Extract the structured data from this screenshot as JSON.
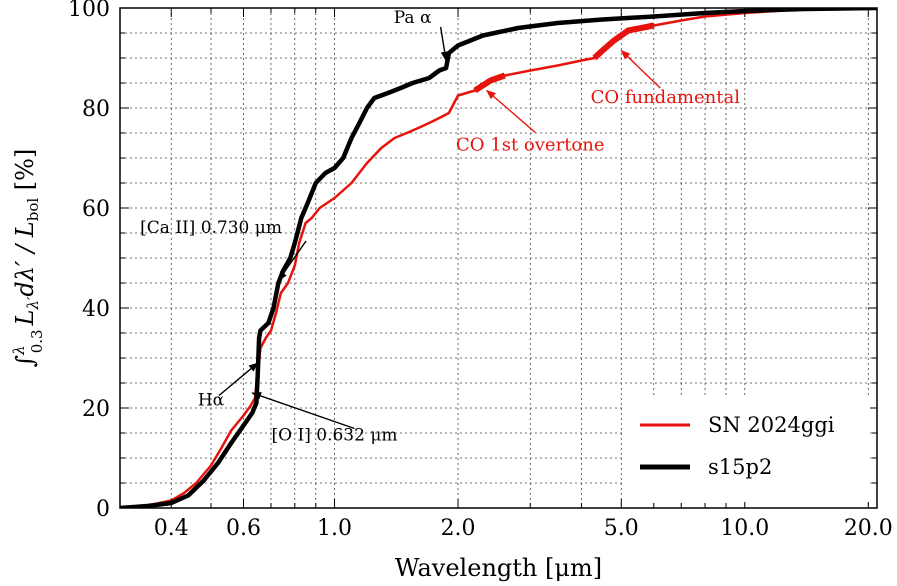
{
  "chart_data": {
    "type": "line",
    "xlabel": "Wavelength [μm]",
    "ylabel": "∫λ0.3 Lλ′ dλ′ / Lbol [%]",
    "ylabel_parts": {
      "integral": "∫",
      "upper": "λ",
      "lower": "0.3",
      "integrand": "L",
      "integrand_sub": "λ′",
      "differential": "dλ′ / L",
      "bol": "bol",
      "unit": " [%]"
    },
    "x_scale": "log",
    "xlim": [
      0.3,
      21
    ],
    "ylim": [
      0,
      100
    ],
    "grid": true,
    "x_ticks": [
      {
        "value": 0.4,
        "label": "0.4"
      },
      {
        "value": 0.6,
        "label": "0.6"
      },
      {
        "value": 1.0,
        "label": "1.0"
      },
      {
        "value": 2.0,
        "label": "2.0"
      },
      {
        "value": 5.0,
        "label": "5.0"
      },
      {
        "value": 10.0,
        "label": "10.0"
      },
      {
        "value": 20.0,
        "label": "20.0"
      }
    ],
    "y_ticks": [
      {
        "value": 0,
        "label": "0"
      },
      {
        "value": 20,
        "label": "20"
      },
      {
        "value": 40,
        "label": "40"
      },
      {
        "value": 60,
        "label": "60"
      },
      {
        "value": 80,
        "label": "80"
      },
      {
        "value": 100,
        "label": "100"
      }
    ],
    "legend_position": "bottom-right",
    "series": [
      {
        "name": "SN 2024ggi",
        "color": "#e8120c",
        "points": [
          [
            0.3,
            0
          ],
          [
            0.33,
            0.3
          ],
          [
            0.36,
            0.7
          ],
          [
            0.4,
            1.5
          ],
          [
            0.43,
            3
          ],
          [
            0.46,
            5
          ],
          [
            0.5,
            8.5
          ],
          [
            0.53,
            12
          ],
          [
            0.56,
            15.5
          ],
          [
            0.6,
            18.5
          ],
          [
            0.625,
            20.5
          ],
          [
            0.64,
            22
          ],
          [
            0.66,
            32
          ],
          [
            0.68,
            34
          ],
          [
            0.7,
            35.5
          ],
          [
            0.72,
            39
          ],
          [
            0.74,
            43
          ],
          [
            0.77,
            45
          ],
          [
            0.8,
            48.5
          ],
          [
            0.82,
            53
          ],
          [
            0.85,
            57
          ],
          [
            0.88,
            58
          ],
          [
            0.92,
            60
          ],
          [
            1.0,
            62
          ],
          [
            1.1,
            65
          ],
          [
            1.2,
            69
          ],
          [
            1.3,
            72
          ],
          [
            1.4,
            74
          ],
          [
            1.5,
            75
          ],
          [
            1.6,
            76
          ],
          [
            1.7,
            77
          ],
          [
            1.8,
            78
          ],
          [
            1.9,
            79
          ],
          [
            2.0,
            82.5
          ],
          [
            2.2,
            83.5
          ],
          [
            2.4,
            85.5
          ],
          [
            2.6,
            86.5
          ],
          [
            3.0,
            87.5
          ],
          [
            3.5,
            88.5
          ],
          [
            4.0,
            89.5
          ],
          [
            4.3,
            90
          ],
          [
            4.5,
            91.5
          ],
          [
            4.8,
            93.5
          ],
          [
            5.2,
            95.5
          ],
          [
            6.0,
            96.5
          ],
          [
            7.0,
            97.5
          ],
          [
            8.0,
            98.3
          ],
          [
            10.0,
            99
          ],
          [
            13.0,
            99.6
          ],
          [
            17.0,
            99.9
          ],
          [
            21.0,
            100
          ]
        ],
        "highlights": [
          {
            "x": [
              2.28,
              2.45
            ],
            "label": "CO 1st overtone"
          },
          {
            "x": [
              4.4,
              5.3
            ],
            "label": "CO fundamental"
          }
        ]
      },
      {
        "name": "s15p2",
        "color": "#000000",
        "points": [
          [
            0.3,
            0
          ],
          [
            0.35,
            0.4
          ],
          [
            0.4,
            1.0
          ],
          [
            0.44,
            2.5
          ],
          [
            0.48,
            5.5
          ],
          [
            0.52,
            9
          ],
          [
            0.56,
            13
          ],
          [
            0.6,
            16.5
          ],
          [
            0.63,
            19
          ],
          [
            0.645,
            21
          ],
          [
            0.65,
            27
          ],
          [
            0.655,
            34
          ],
          [
            0.66,
            35.5
          ],
          [
            0.69,
            37
          ],
          [
            0.71,
            40
          ],
          [
            0.73,
            45
          ],
          [
            0.75,
            47.5
          ],
          [
            0.78,
            50
          ],
          [
            0.8,
            53
          ],
          [
            0.83,
            58
          ],
          [
            0.86,
            61
          ],
          [
            0.9,
            65
          ],
          [
            0.95,
            67
          ],
          [
            1.0,
            68
          ],
          [
            1.05,
            70
          ],
          [
            1.1,
            74
          ],
          [
            1.15,
            77
          ],
          [
            1.2,
            80
          ],
          [
            1.25,
            82
          ],
          [
            1.35,
            83
          ],
          [
            1.45,
            84
          ],
          [
            1.55,
            85
          ],
          [
            1.7,
            86
          ],
          [
            1.8,
            87.5
          ],
          [
            1.87,
            88
          ],
          [
            1.9,
            91
          ],
          [
            2.0,
            92.5
          ],
          [
            2.3,
            94.5
          ],
          [
            2.8,
            96
          ],
          [
            3.5,
            97
          ],
          [
            4.5,
            97.7
          ],
          [
            6.0,
            98.3
          ],
          [
            8.0,
            99
          ],
          [
            10.0,
            99.4
          ],
          [
            14.0,
            99.8
          ],
          [
            21.0,
            100
          ]
        ]
      }
    ],
    "annotations": [
      {
        "id": "paa",
        "text": "Pa α",
        "color": "#000000",
        "x": 1.87,
        "y": 89.5,
        "text_x": 1.55,
        "text_y": 97
      },
      {
        "id": "ca2",
        "text": "[Ca II] 0.730 μm",
        "color": "#000000",
        "x": 0.73,
        "y": 45.5,
        "text_x": 0.5,
        "text_y": 55
      },
      {
        "id": "ha",
        "text": "Hα",
        "color": "#000000",
        "x": 0.65,
        "y": 29,
        "text_x": 0.5,
        "text_y": 20.5
      },
      {
        "id": "o1",
        "text": "[O I] 0.632 μm",
        "color": "#000000",
        "x": 0.63,
        "y": 23,
        "text_x": 1.0,
        "text_y": 13.5
      },
      {
        "id": "co1",
        "text": "CO 1st overtone",
        "color": "#e8120c",
        "x": 2.35,
        "y": 83.5,
        "text_x": 3.0,
        "text_y": 71.5
      },
      {
        "id": "cof",
        "text": "CO fundamental",
        "color": "#e8120c",
        "x": 5.0,
        "y": 91.5,
        "text_x": 6.4,
        "text_y": 81
      }
    ]
  }
}
